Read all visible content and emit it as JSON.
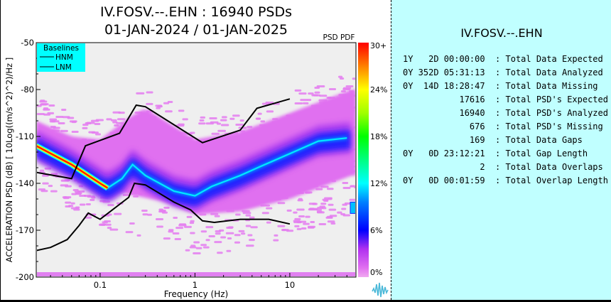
{
  "chart_data": {
    "type": "heatmap",
    "title_line1": "IV.FOSV.--.EHN : 16940 PSDs",
    "title_line2": "01-JAN-2024 / 01-JAN-2025",
    "xlabel": "Frequency (Hz)",
    "ylabel": "ACCELERATION PSD (dB) [ 10Log((m/s^2)^2)/Hz ]",
    "xscale": "log",
    "xlim": [
      0.0212,
      49.8
    ],
    "ylim": [
      -200,
      -50
    ],
    "xticks": [
      {
        "value": 0.1,
        "label": "0.1"
      },
      {
        "value": 1,
        "label": "1"
      },
      {
        "value": 10,
        "label": "10"
      }
    ],
    "yticks": [
      {
        "value": -50,
        "label": "-50"
      },
      {
        "value": -80,
        "label": "-80"
      },
      {
        "value": -110,
        "label": "-110"
      },
      {
        "value": -140,
        "label": "-140"
      },
      {
        "value": -170,
        "label": "-170"
      },
      {
        "value": -200,
        "label": "-200"
      }
    ],
    "colorbar": {
      "title": "PSD PDF",
      "ticks": [
        {
          "value": 30,
          "label": "30+"
        },
        {
          "value": 24,
          "label": "24%"
        },
        {
          "value": 18,
          "label": "18%"
        },
        {
          "value": 12,
          "label": "12%"
        },
        {
          "value": 6,
          "label": "6%"
        },
        {
          "value": 0,
          "label": "0%"
        }
      ],
      "range": [
        0,
        30
      ]
    },
    "legend": {
      "title": "Baselines",
      "placement": "top-left",
      "entries": [
        "HNM",
        "LNM"
      ],
      "background": "#00ffff"
    },
    "baselines": [
      {
        "name": "HNM",
        "points": [
          [
            0.0212,
            -133
          ],
          [
            0.05,
            -137
          ],
          [
            0.07,
            -116
          ],
          [
            0.16,
            -108
          ],
          [
            0.24,
            -90
          ],
          [
            0.3,
            -91
          ],
          [
            1.2,
            -114
          ],
          [
            3.0,
            -106
          ],
          [
            4.5,
            -92
          ],
          [
            10,
            -86
          ]
        ]
      },
      {
        "name": "LNM",
        "points": [
          [
            0.0212,
            -183
          ],
          [
            0.03,
            -181
          ],
          [
            0.045,
            -176
          ],
          [
            0.06,
            -167
          ],
          [
            0.075,
            -159
          ],
          [
            0.1,
            -163
          ],
          [
            0.2,
            -149
          ],
          [
            0.23,
            -140
          ],
          [
            0.3,
            -141
          ],
          [
            0.6,
            -152
          ],
          [
            0.9,
            -157
          ],
          [
            1.2,
            -164
          ],
          [
            1.6,
            -165
          ],
          [
            3.0,
            -163
          ],
          [
            6.0,
            -163
          ],
          [
            10,
            -166
          ]
        ]
      }
    ],
    "mode_line": {
      "name": "PDF mode",
      "points": [
        [
          0.0212,
          -116
        ],
        [
          0.05,
          -128
        ],
        [
          0.1,
          -140
        ],
        [
          0.12,
          -143
        ],
        [
          0.17,
          -137
        ],
        [
          0.22,
          -128
        ],
        [
          0.3,
          -135
        ],
        [
          0.6,
          -145
        ],
        [
          1.0,
          -148
        ],
        [
          1.5,
          -142
        ],
        [
          3.0,
          -135
        ],
        [
          5.0,
          -129
        ],
        [
          10,
          -121
        ],
        [
          20,
          -113
        ],
        [
          40,
          -111
        ]
      ]
    },
    "density_band": {
      "upper": [
        [
          0.0212,
          -100
        ],
        [
          0.05,
          -110
        ],
        [
          0.1,
          -112
        ],
        [
          0.2,
          -98
        ],
        [
          0.3,
          -92
        ],
        [
          1.0,
          -112
        ],
        [
          3.0,
          -107
        ],
        [
          10,
          -95
        ],
        [
          45,
          -80
        ]
      ],
      "lower": [
        [
          0.0212,
          -120
        ],
        [
          0.1,
          -143
        ],
        [
          0.2,
          -147
        ],
        [
          0.5,
          -152
        ],
        [
          1.0,
          -160
        ],
        [
          3.0,
          -158
        ],
        [
          10,
          -150
        ],
        [
          45,
          -135
        ]
      ]
    }
  },
  "stats": {
    "title": "IV.FOSV.--.EHN",
    "rows": [
      {
        "value": "1Y   2D 00:00:00",
        "label": "Total Data Expected"
      },
      {
        "value": "0Y 352D 05:31:13",
        "label": "Total Data Analyzed"
      },
      {
        "value": "0Y  14D 18:28:47",
        "label": "Total Data Missing"
      },
      {
        "value": "17616",
        "label": "Total PSD's Expected"
      },
      {
        "value": "16940",
        "label": "Total PSD's Analyzed"
      },
      {
        "value": "676",
        "label": "Total PSD's Missing"
      },
      {
        "value": "169",
        "label": "Total Data Gaps"
      },
      {
        "value": "0Y   0D 23:12:21",
        "label": "Total Gap Length"
      },
      {
        "value": "2",
        "label": "Total Data Overlaps"
      },
      {
        "value": "0Y   0D 00:01:59",
        "label": "Total Overlap Length"
      }
    ]
  },
  "logo": {
    "icon": "waveform-logo-icon"
  }
}
